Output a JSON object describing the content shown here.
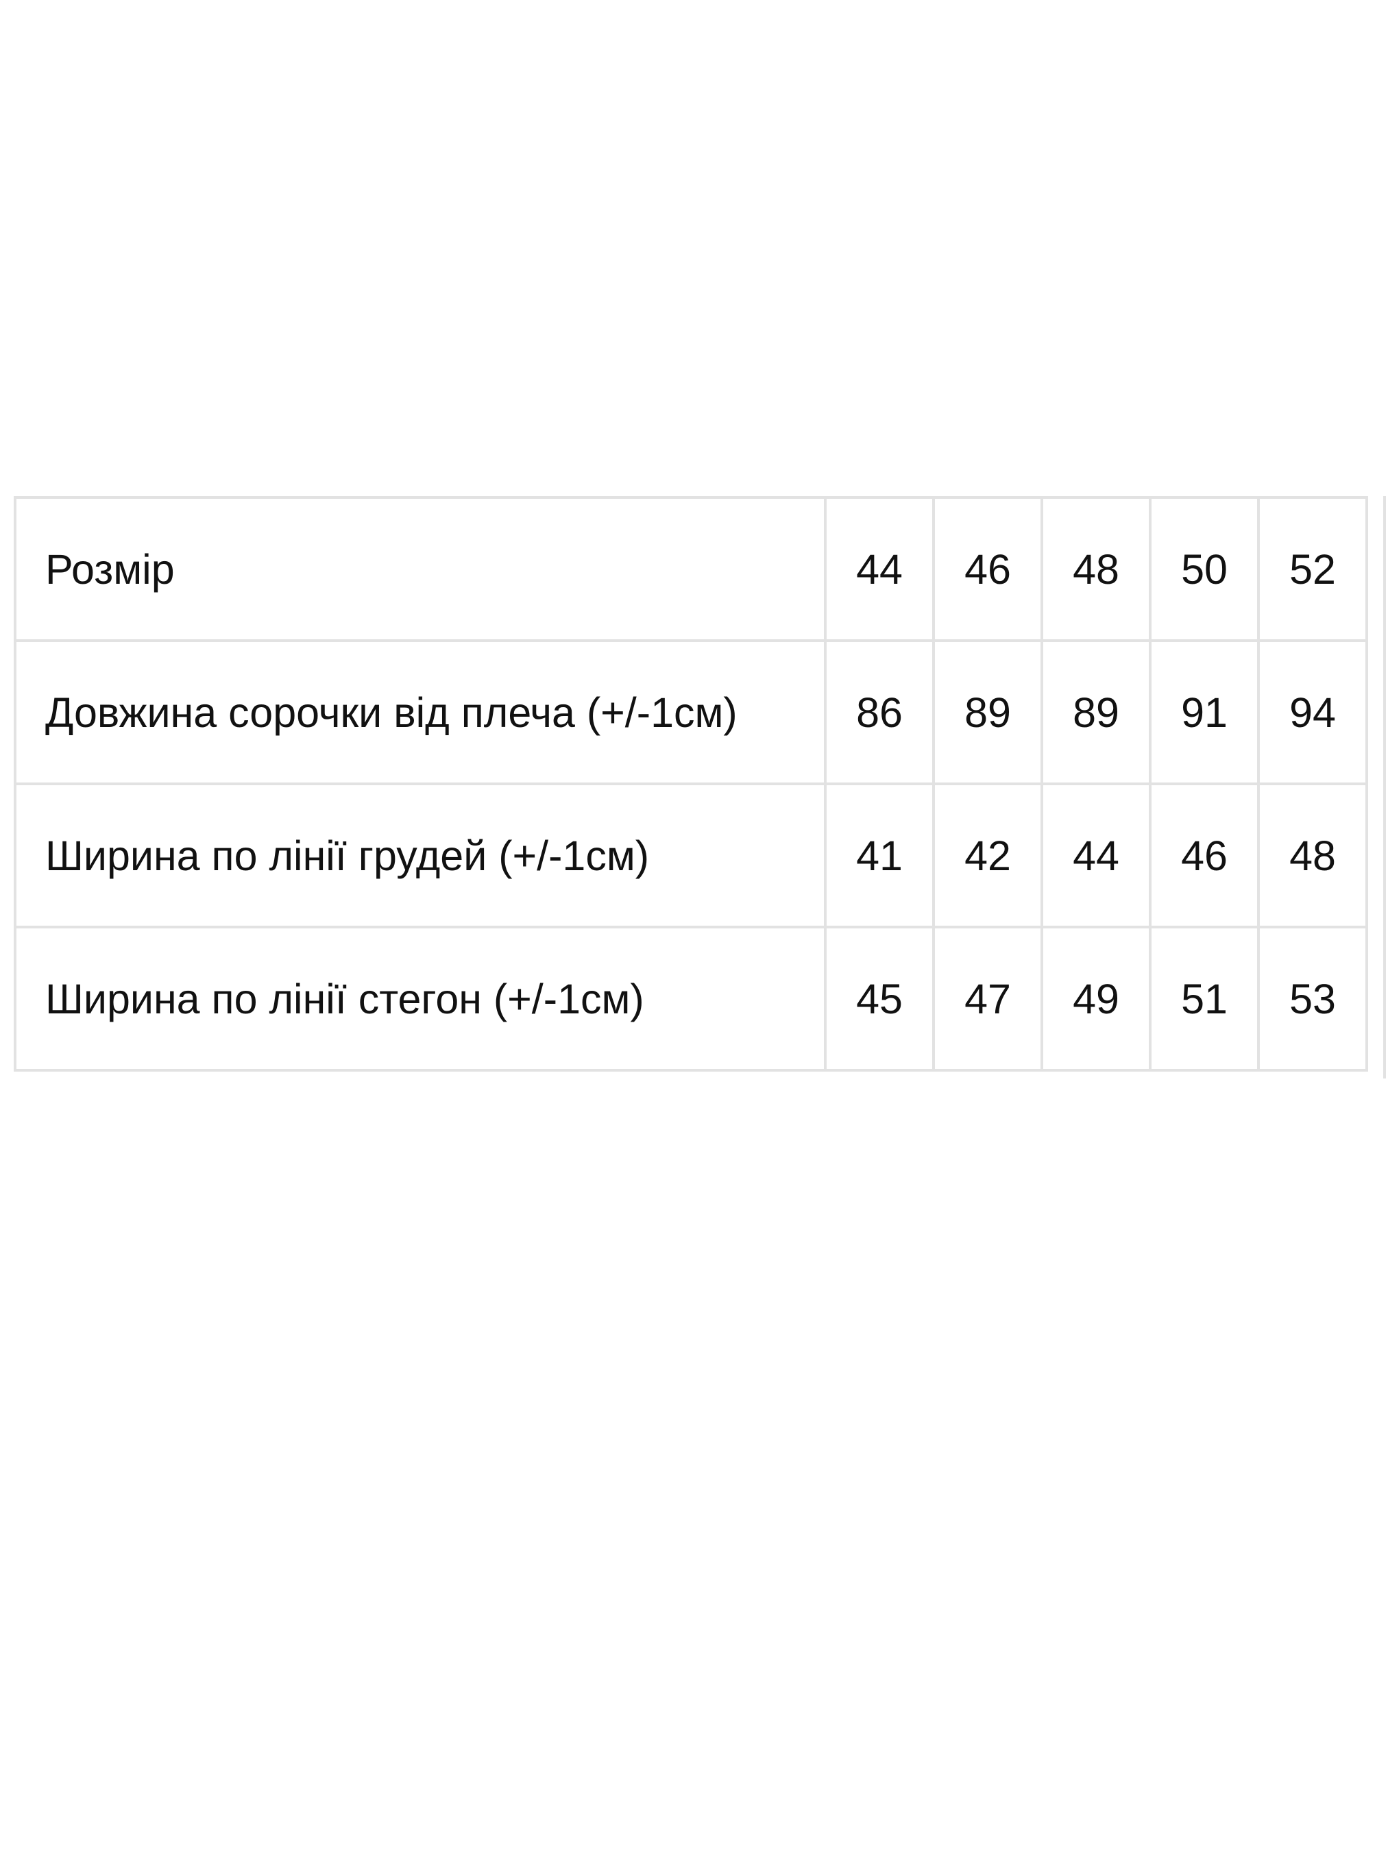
{
  "size_table": {
    "rows": [
      {
        "label": "Розмір",
        "values": [
          "44",
          "46",
          "48",
          "50",
          "52"
        ]
      },
      {
        "label": "Довжина сорочки від плеча (+/-1см)",
        "values": [
          "86",
          "89",
          "89",
          "91",
          "94"
        ]
      },
      {
        "label": "Ширина по лінії грудей (+/-1см)",
        "values": [
          "41",
          "42",
          "44",
          "46",
          "48"
        ]
      },
      {
        "label": "Ширина по лінії стегон (+/-1см)",
        "values": [
          "45",
          "47",
          "49",
          "51",
          "53"
        ]
      }
    ]
  }
}
